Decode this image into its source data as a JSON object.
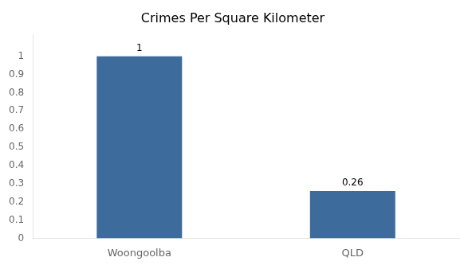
{
  "chart_data": {
    "type": "bar",
    "title": "Crimes Per Square Kilometer",
    "categories": [
      "Woongoolba",
      "QLD"
    ],
    "values": [
      1.0,
      0.26
    ],
    "color": "#3d6b9b",
    "ylim": [
      0,
      1.12
    ],
    "yticks": [
      0,
      0.1,
      0.2,
      0.3,
      0.4,
      0.5,
      0.6,
      0.7,
      0.8,
      0.9,
      1.0
    ],
    "grid": false,
    "data_labels": true
  }
}
